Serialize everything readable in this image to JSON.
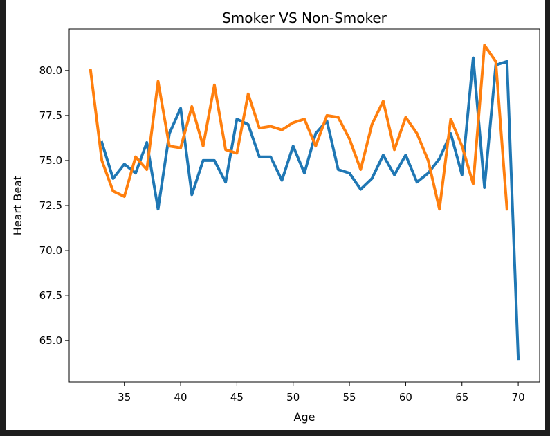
{
  "chart_data": {
    "type": "line",
    "title": "Smoker VS Non-Smoker",
    "xlabel": "Age",
    "ylabel": "Heart Beat",
    "xlim": [
      30.1,
      71.9
    ],
    "ylim": [
      62.7,
      82.3
    ],
    "xticks": [
      35,
      40,
      45,
      50,
      55,
      60,
      65,
      70
    ],
    "yticks": [
      65.0,
      67.5,
      70.0,
      72.5,
      75.0,
      77.5,
      80.0
    ],
    "grid": false,
    "series": [
      {
        "color": "#1f77b4",
        "x": [
          33,
          34,
          35,
          36,
          37,
          38,
          39,
          40,
          41,
          42,
          43,
          44,
          45,
          46,
          47,
          48,
          49,
          50,
          51,
          52,
          53,
          54,
          55,
          56,
          57,
          58,
          59,
          60,
          61,
          62,
          63,
          64,
          65,
          66,
          67,
          68,
          69,
          70
        ],
        "y": [
          76.0,
          74.0,
          74.8,
          74.3,
          76.0,
          72.3,
          76.5,
          77.9,
          73.1,
          75.0,
          75.0,
          73.8,
          77.3,
          77.0,
          75.2,
          75.2,
          73.9,
          75.8,
          74.3,
          76.5,
          77.2,
          74.5,
          74.3,
          73.4,
          74.0,
          75.3,
          74.2,
          75.3,
          73.8,
          74.3,
          75.1,
          76.5,
          74.2,
          80.7,
          73.5,
          80.3,
          80.5,
          64.0
        ]
      },
      {
        "color": "#ff7f0e",
        "x": [
          32,
          33,
          34,
          35,
          36,
          37,
          38,
          39,
          40,
          41,
          42,
          43,
          44,
          45,
          46,
          47,
          48,
          49,
          50,
          51,
          52,
          53,
          54,
          55,
          56,
          57,
          58,
          59,
          60,
          61,
          62,
          63,
          64,
          65,
          66,
          67,
          68,
          69
        ],
        "y": [
          80.0,
          75.0,
          73.3,
          73.0,
          75.2,
          74.5,
          79.4,
          75.8,
          75.7,
          78.0,
          75.8,
          79.2,
          75.6,
          75.4,
          78.7,
          76.8,
          76.9,
          76.7,
          77.1,
          77.3,
          75.8,
          77.5,
          77.4,
          76.2,
          74.5,
          77.0,
          78.3,
          75.6,
          77.4,
          76.5,
          75.0,
          72.3,
          77.3,
          75.8,
          73.7,
          81.4,
          80.5,
          72.3
        ]
      }
    ]
  }
}
